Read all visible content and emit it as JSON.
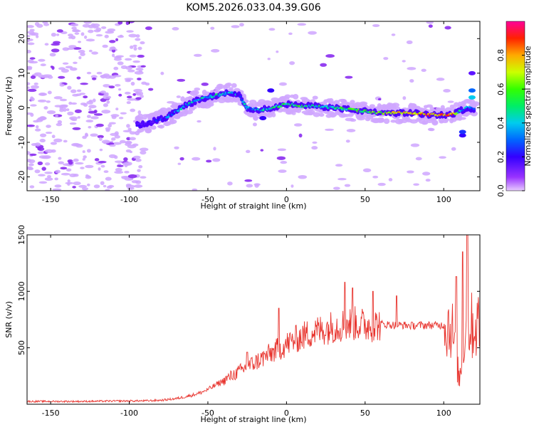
{
  "title": "KOM5.2026.033.04.39.G06",
  "chart_data": [
    {
      "type": "heatmap",
      "xlabel": "Height of straight line (km)",
      "ylabel": "Frequency (Hz)",
      "xlim": [
        -165,
        123
      ],
      "ylim": [
        -24,
        25
      ],
      "xticks": [
        -150,
        -100,
        -50,
        0,
        50,
        100
      ],
      "yticks": [
        -20,
        -10,
        0,
        10,
        20
      ],
      "colorbar": {
        "label": "Normalized spectral amplitude",
        "range": [
          0,
          1
        ],
        "ticks": [
          0.0,
          0.2,
          0.4,
          0.6,
          0.8
        ],
        "colors": [
          "#cc99ff",
          "#6600ff",
          "#0000ff",
          "#00ccff",
          "#00ff66",
          "#66ff00",
          "#ffff00",
          "#ff9900",
          "#ff0000",
          "#ff0099"
        ]
      },
      "ridge": {
        "x": [
          -95,
          -85,
          -75,
          -70,
          -65,
          -60,
          -55,
          -50,
          -45,
          -40,
          -35,
          -30,
          -25,
          -20,
          -15,
          -10,
          -5,
          0,
          10,
          20,
          30,
          40,
          50,
          60,
          70,
          80,
          90,
          100,
          105,
          110,
          115,
          120
        ],
        "y": [
          -5,
          -4,
          -2.5,
          -1,
          0.5,
          1.5,
          2.5,
          3,
          3.5,
          4,
          4.5,
          3.5,
          0,
          -0.5,
          -0.5,
          0,
          0.5,
          1,
          0.5,
          0.5,
          0,
          -0.5,
          -1,
          -1.5,
          -1.5,
          -1.5,
          -2,
          -2,
          -2,
          -1,
          0,
          -0.5
        ],
        "amplitude": [
          0.15,
          0.2,
          0.25,
          0.3,
          0.35,
          0.35,
          0.4,
          0.35,
          0.4,
          0.45,
          0.35,
          0.3,
          0.35,
          0.3,
          0.35,
          0.4,
          0.45,
          0.5,
          0.5,
          0.45,
          0.45,
          0.5,
          0.55,
          0.6,
          0.7,
          0.75,
          0.8,
          0.8,
          0.85,
          0.4,
          0.3,
          0.3
        ]
      }
    },
    {
      "type": "line",
      "xlabel": "Height of straight line (km)",
      "ylabel": "SNR (v/v)",
      "xlim": [
        -165,
        123
      ],
      "ylim": [
        0,
        1500
      ],
      "xticks": [
        -150,
        -100,
        -50,
        0,
        50,
        100
      ],
      "yticks": [
        500,
        1000,
        1500
      ],
      "series": [
        {
          "color": "#e8352f",
          "x": [
            -165,
            -150,
            -130,
            -110,
            -90,
            -80,
            -70,
            -65,
            -60,
            -55,
            -50,
            -45,
            -40,
            -35,
            -30,
            -25,
            -20,
            -15,
            -10,
            -5,
            0,
            5,
            10,
            15,
            20,
            25,
            30,
            35,
            40,
            45,
            50,
            55,
            60,
            65,
            70,
            75,
            80,
            85,
            90,
            95,
            100,
            105,
            108,
            110,
            112,
            115,
            118,
            123
          ],
          "y": [
            25,
            25,
            25,
            28,
            30,
            35,
            50,
            65,
            80,
            100,
            130,
            170,
            210,
            250,
            290,
            330,
            370,
            410,
            450,
            490,
            530,
            570,
            600,
            630,
            650,
            670,
            690,
            700,
            710,
            715,
            700,
            700,
            710,
            705,
            700,
            700,
            695,
            700,
            700,
            700,
            700,
            700,
            400,
            200,
            500,
            700,
            690,
            700
          ]
        }
      ],
      "annotations_spikes": [
        {
          "x": -25,
          "y": 460
        },
        {
          "x": -5,
          "y": 850
        },
        {
          "x": 37,
          "y": 1080
        },
        {
          "x": 42,
          "y": 1030
        },
        {
          "x": 55,
          "y": 1000
        },
        {
          "x": 70,
          "y": 960
        },
        {
          "x": 108,
          "y": 1130
        },
        {
          "x": 112,
          "y": 1350
        },
        {
          "x": 115,
          "y": 1500
        }
      ]
    }
  ]
}
